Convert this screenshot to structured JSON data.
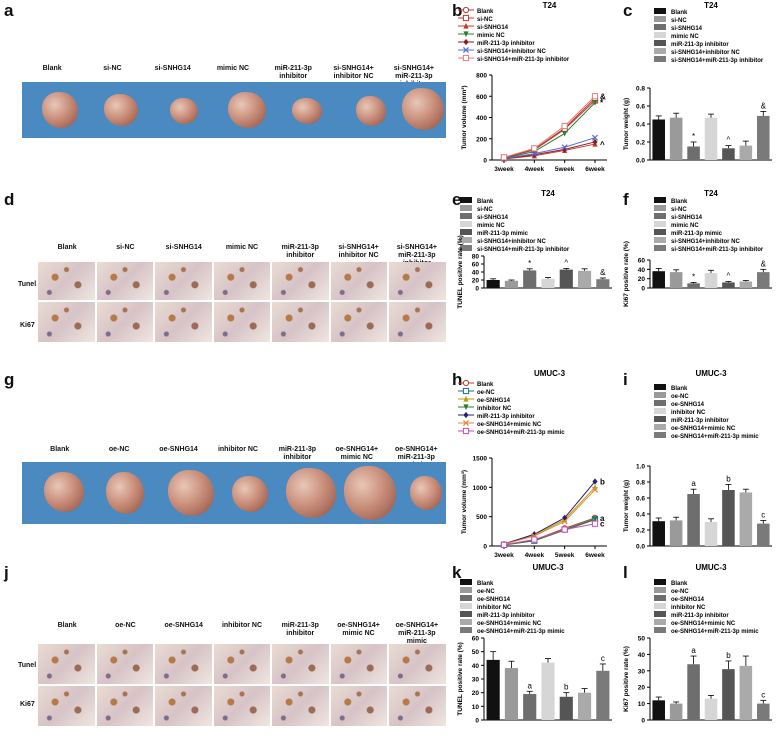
{
  "panel_letters": {
    "a": "a",
    "b": "b",
    "c": "c",
    "d": "d",
    "e": "e",
    "f": "f",
    "g": "g",
    "h": "h",
    "i": "i",
    "j": "j",
    "k": "k",
    "l": "l"
  },
  "groups_t24_photo": [
    "Blank",
    "si-NC",
    "si-SNHG14",
    "mimic NC",
    "miR-211-3p\ninhibitor",
    "si-SNHG14+\ninhibitor NC",
    "si-SNHG14+\nmiR-211-3p inhibitor"
  ],
  "groups_umuc_photo": [
    "Blank",
    "oe-NC",
    "oe-SNHG14",
    "inhibitor NC",
    "miR-211-3p\ninhibitor",
    "oe-SNHG14+\nmimic NC",
    "oe-SNHG14+\nmiR-211-3p mimic"
  ],
  "row_labels": {
    "tunel": "Tunel",
    "ki67": "Ki67"
  },
  "chart_data": [
    {
      "id": "b",
      "type": "line",
      "title": "T24",
      "ylabel": "Tumor volume (mm³)",
      "ylim": [
        0,
        800
      ],
      "yticks": [
        0,
        200,
        400,
        600,
        800
      ],
      "categories": [
        "3week",
        "4week",
        "5week",
        "6week"
      ],
      "series": [
        {
          "name": "Blank",
          "values": [
            20,
            100,
            300,
            580
          ],
          "color": "#c0392b",
          "marker": "o"
        },
        {
          "name": "si-NC",
          "values": [
            20,
            95,
            290,
            560
          ],
          "color": "#c0392b",
          "marker": "s"
        },
        {
          "name": "si-SNHG14",
          "values": [
            10,
            40,
            90,
            150
          ],
          "color": "#c0392b",
          "marker": "^"
        },
        {
          "name": "mimic NC",
          "values": [
            15,
            80,
            250,
            540
          ],
          "color": "#2e7d32",
          "marker": "v"
        },
        {
          "name": "miR-211-3p inhibitor",
          "values": [
            10,
            50,
            100,
            170
          ],
          "color": "#8e1b1b",
          "marker": "d"
        },
        {
          "name": "si-SNHG14+inhibitor NC",
          "values": [
            12,
            60,
            120,
            210
          ],
          "color": "#5b6bd6",
          "marker": "x"
        },
        {
          "name": "si-SNHG14+miR-211-3p inhibitor",
          "values": [
            25,
            110,
            320,
            600
          ],
          "color": "#e07b7b",
          "marker": "s"
        }
      ],
      "annotations": [
        "&",
        "*",
        "^"
      ]
    },
    {
      "id": "c",
      "type": "bar",
      "title": "T24",
      "ylabel": "Tumor weight (g)",
      "ylim": [
        0,
        0.8
      ],
      "yticks": [
        "0.0",
        "0.2",
        "0.4",
        "0.6",
        "0.8"
      ],
      "categories": [
        "Blank",
        "si-NC",
        "si-SNHG14",
        "mimic NC",
        "miR-211-3p inhibitor",
        "si-SNHG14+inhibitor NC",
        "si-SNHG14+miR-211-3p inhibitor"
      ],
      "values": [
        0.45,
        0.47,
        0.15,
        0.47,
        0.13,
        0.16,
        0.49
      ],
      "errors": [
        0.04,
        0.05,
        0.05,
        0.04,
        0.03,
        0.05,
        0.05
      ],
      "colors": [
        "#111111",
        "#9a9a9a",
        "#6e6e6e",
        "#d6d6d6",
        "#555555",
        "#aaaaaa",
        "#7a7a7a"
      ],
      "labels": [
        "",
        "",
        "*",
        "",
        "^",
        "",
        "&"
      ]
    },
    {
      "id": "e",
      "type": "bar",
      "title": "T24",
      "ylabel": "TUNEL positive rate (%)",
      "ylim": [
        0,
        80
      ],
      "yticks": [
        "0",
        "20",
        "40",
        "60",
        "80"
      ],
      "categories": [
        "Blank",
        "si-NC",
        "si-SNHG14",
        "mimic NC",
        "miR-211-3p mimic",
        "si-SNHG14+inhibitor NC",
        "si-SNHG14+miR-211-3p inhibitor"
      ],
      "values": [
        20,
        18,
        44,
        23,
        46,
        43,
        22
      ],
      "errors": [
        3,
        2,
        4,
        3,
        3,
        5,
        3
      ],
      "colors": [
        "#111111",
        "#9a9a9a",
        "#6e6e6e",
        "#d6d6d6",
        "#555555",
        "#aaaaaa",
        "#7a7a7a"
      ],
      "labels": [
        "",
        "",
        "*",
        "",
        "^",
        "",
        "&"
      ]
    },
    {
      "id": "f",
      "type": "bar",
      "title": "T24",
      "ylabel": "Ki67 positive rate (%)",
      "ylim": [
        0,
        60
      ],
      "yticks": [
        "0",
        "20",
        "40",
        "60"
      ],
      "categories": [
        "Blank",
        "si-NC",
        "si-SNHG14",
        "mimic NC",
        "miR-211-3p mimic",
        "si-SNHG14+inhibitor NC",
        "si-SNHG14+miR-211-3p inhibitor"
      ],
      "values": [
        36,
        34,
        10,
        32,
        12,
        14,
        34
      ],
      "errors": [
        6,
        5,
        2,
        6,
        2,
        2,
        6
      ],
      "colors": [
        "#111111",
        "#9a9a9a",
        "#6e6e6e",
        "#d6d6d6",
        "#555555",
        "#aaaaaa",
        "#7a7a7a"
      ],
      "labels": [
        "",
        "",
        "*",
        "",
        "^",
        "",
        "&"
      ]
    },
    {
      "id": "h",
      "type": "line",
      "title": "UMUC-3",
      "ylabel": "Tumor volume (mm³)",
      "ylim": [
        0,
        1500
      ],
      "yticks": [
        0,
        500,
        1000,
        1500
      ],
      "categories": [
        "3week",
        "4week",
        "5week",
        "6week"
      ],
      "series": [
        {
          "name": "Blank",
          "values": [
            20,
            100,
            300,
            480
          ],
          "color": "#c0392b",
          "marker": "o"
        },
        {
          "name": "oe-NC",
          "values": [
            20,
            90,
            280,
            460
          ],
          "color": "#1b6f8c",
          "marker": "s"
        },
        {
          "name": "oe-SNHG14",
          "values": [
            30,
            180,
            450,
            1000
          ],
          "color": "#b8a000",
          "marker": "^"
        },
        {
          "name": "inhibitor NC",
          "values": [
            15,
            90,
            270,
            450
          ],
          "color": "#2e7d32",
          "marker": "v"
        },
        {
          "name": "miR-211-3p inhibitor",
          "values": [
            35,
            200,
            480,
            1100
          ],
          "color": "#2a1f6e",
          "marker": "d"
        },
        {
          "name": "oe-SNHG14+mimic NC",
          "values": [
            30,
            170,
            420,
            960
          ],
          "color": "#e08a3a",
          "marker": "x"
        },
        {
          "name": "oe-SNHG14+miR-211-3p mimic",
          "values": [
            20,
            110,
            280,
            380
          ],
          "color": "#d04ab0",
          "marker": "s"
        }
      ],
      "annotations": [
        "b",
        "a",
        "c"
      ]
    },
    {
      "id": "i",
      "type": "bar",
      "title": "UMUC-3",
      "ylabel": "Tumor weight (g)",
      "ylim": [
        0,
        1.0
      ],
      "yticks": [
        "0.0",
        "0.2",
        "0.4",
        "0.6",
        "0.8",
        "1.0"
      ],
      "categories": [
        "Blank",
        "oe-NC",
        "oe-SNHG14",
        "inhibitor NC",
        "miR-211-3p inhibitor",
        "oe-SNHG14+mimic NC",
        "oe-SNHG14+miR-211-3p mimic"
      ],
      "values": [
        0.31,
        0.32,
        0.65,
        0.3,
        0.7,
        0.67,
        0.28
      ],
      "errors": [
        0.04,
        0.04,
        0.06,
        0.04,
        0.07,
        0.04,
        0.04
      ],
      "colors": [
        "#111111",
        "#9a9a9a",
        "#6e6e6e",
        "#d6d6d6",
        "#555555",
        "#aaaaaa",
        "#7a7a7a"
      ],
      "labels": [
        "",
        "",
        "a",
        "",
        "b",
        "",
        "c"
      ]
    },
    {
      "id": "k",
      "type": "bar",
      "title": "UMUC-3",
      "ylabel": "TUNEL positive rate (%)",
      "ylim": [
        0,
        60
      ],
      "yticks": [
        "0",
        "10",
        "20",
        "30",
        "40",
        "50",
        "60"
      ],
      "categories": [
        "Blank",
        "oe-NC",
        "oe-SNHG14",
        "inhibitor NC",
        "miR-211-3p inhibitor",
        "oe-SNHG14+mimic NC",
        "oe-SNHG14+miR-211-3p mimic"
      ],
      "values": [
        44,
        38,
        19,
        42,
        17,
        20,
        36
      ],
      "errors": [
        6,
        5,
        2,
        3,
        3,
        3,
        5
      ],
      "colors": [
        "#111111",
        "#9a9a9a",
        "#6e6e6e",
        "#d6d6d6",
        "#555555",
        "#aaaaaa",
        "#7a7a7a"
      ],
      "labels": [
        "",
        "",
        "a",
        "",
        "b",
        "",
        "c"
      ]
    },
    {
      "id": "l",
      "type": "bar",
      "title": "UMUC-3",
      "ylabel": "Ki67 positive rate (%)",
      "ylim": [
        0,
        50
      ],
      "yticks": [
        "0",
        "10",
        "20",
        "30",
        "40",
        "50"
      ],
      "categories": [
        "Blank",
        "oe-NC",
        "oe-SNHG14",
        "inhibitor NC",
        "miR-211-3p inhibitor",
        "oe-SNHG14+mimic NC",
        "oe-SNHG14+miR-211-3p mimic"
      ],
      "values": [
        12,
        10,
        34,
        13,
        31,
        33,
        10
      ],
      "errors": [
        2,
        1,
        5,
        2,
        5,
        6,
        2
      ],
      "colors": [
        "#111111",
        "#9a9a9a",
        "#6e6e6e",
        "#d6d6d6",
        "#555555",
        "#aaaaaa",
        "#7a7a7a"
      ],
      "labels": [
        "",
        "",
        "a",
        "",
        "b",
        "",
        "c"
      ]
    }
  ]
}
